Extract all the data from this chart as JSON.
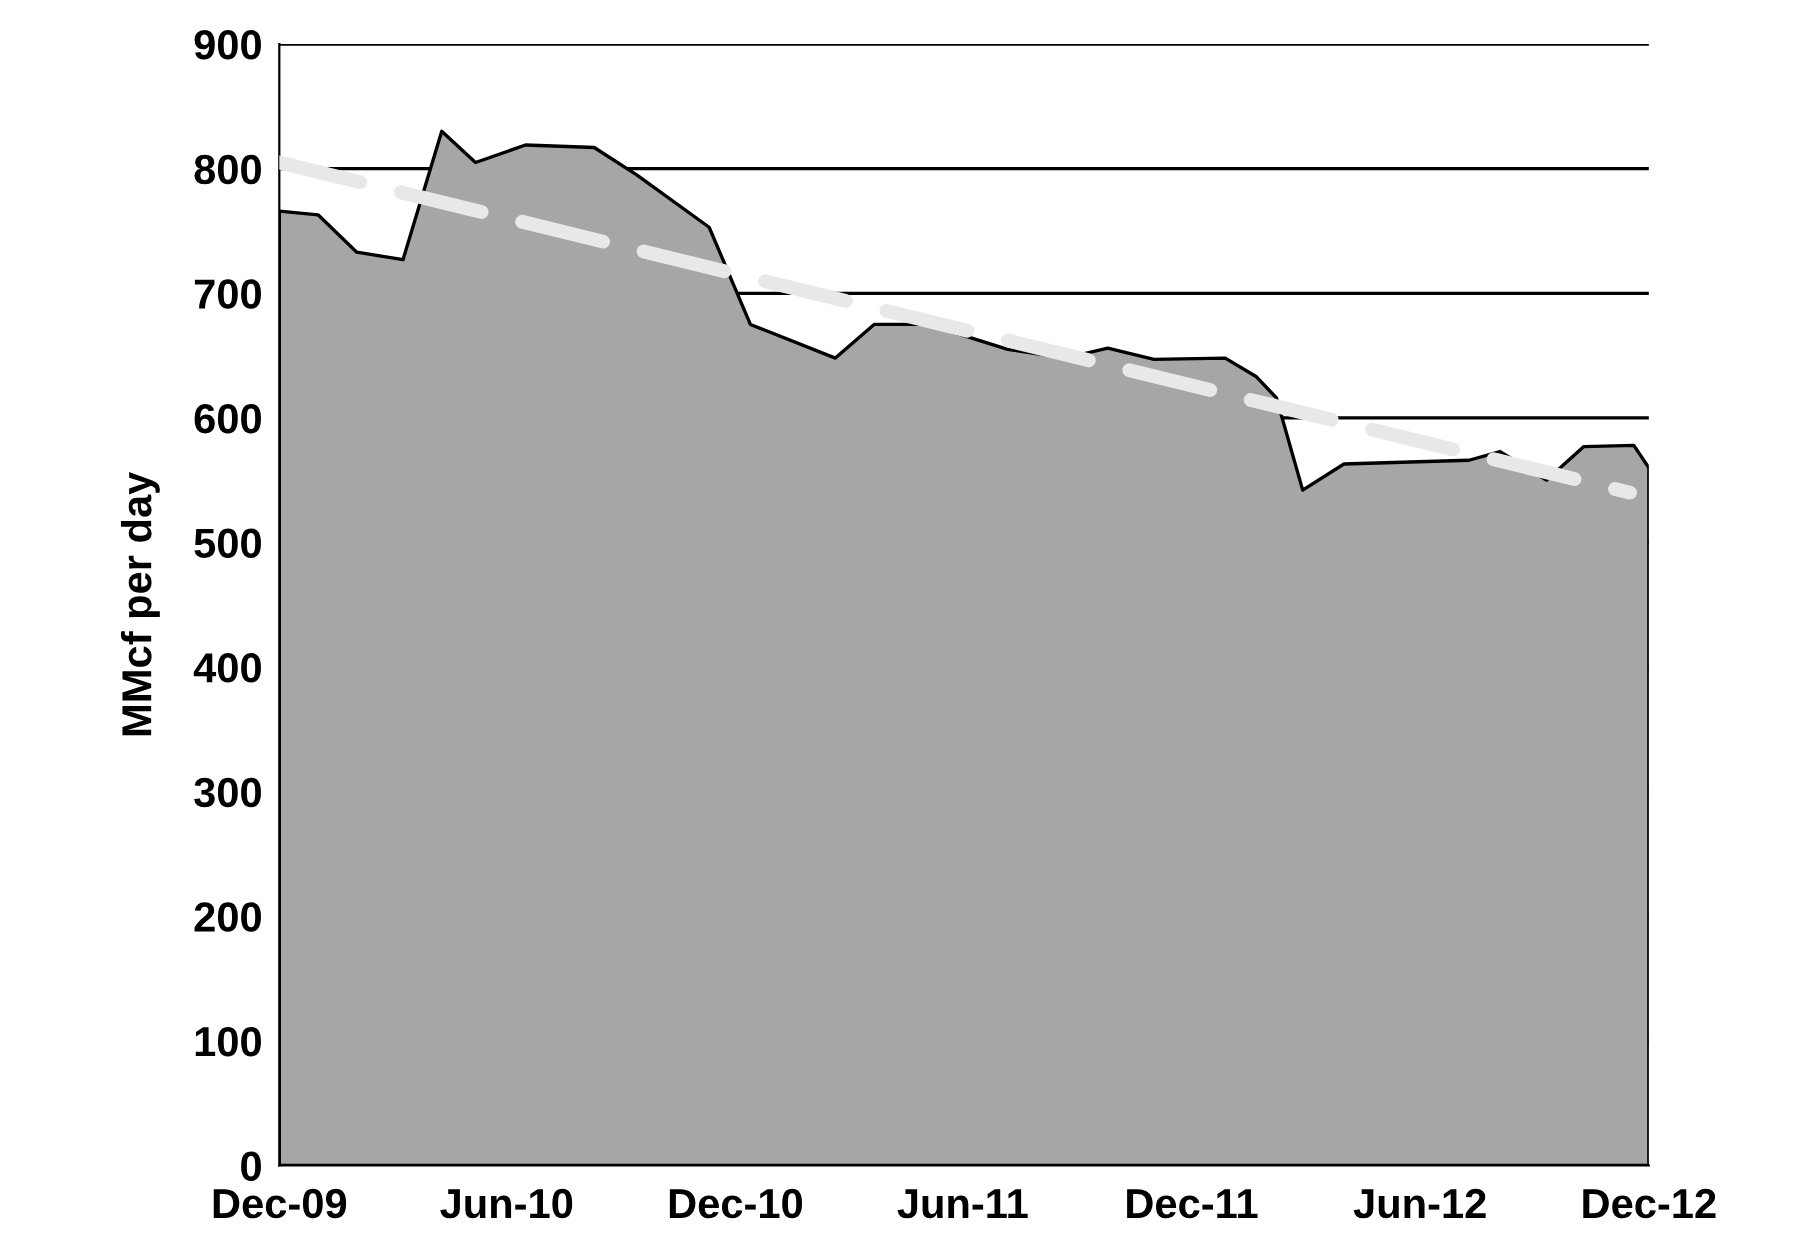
{
  "chart_data": {
    "type": "area",
    "ylabel": "MMcf per day",
    "grid": "y",
    "ylim": [
      0,
      900
    ],
    "yticks": [
      0,
      100,
      200,
      300,
      400,
      500,
      600,
      700,
      800,
      900
    ],
    "xlim": [
      "2009-12-01",
      "2012-12-01"
    ],
    "xticks": [
      {
        "value": "2009-12-01",
        "label": "Dec-09"
      },
      {
        "value": "2010-06-01",
        "label": "Jun-10"
      },
      {
        "value": "2010-12-01",
        "label": "Dec-10"
      },
      {
        "value": "2011-06-01",
        "label": "Jun-11"
      },
      {
        "value": "2011-12-01",
        "label": "Dec-11"
      },
      {
        "value": "2012-06-01",
        "label": "Jun-12"
      },
      {
        "value": "2012-12-01",
        "label": "Dec-12"
      }
    ],
    "series": [
      {
        "color": "#a6a6a6",
        "x": [
          "2009-12-01",
          "2010-01-01",
          "2010-02-01",
          "2010-03-10",
          "2010-04-10",
          "2010-05-07",
          "2010-06-16",
          "2010-08-10",
          "2010-09-13",
          "2010-11-10",
          "2010-12-13",
          "2011-02-19",
          "2011-03-22",
          "2011-05-04",
          "2011-07-07",
          "2011-08-22",
          "2011-09-25",
          "2011-11-01",
          "2011-12-28",
          "2012-01-22",
          "2012-02-07",
          "2012-02-28",
          "2012-04-01",
          "2012-07-10",
          "2012-08-04",
          "2012-09-10",
          "2012-10-10",
          "2012-11-19",
          "2012-12-01"
        ],
        "values": [
          766,
          763,
          733,
          727,
          830,
          805,
          819,
          817,
          795,
          753,
          675,
          648,
          675,
          675,
          655,
          648,
          656,
          647,
          648,
          633,
          616,
          542,
          563,
          566,
          573,
          550,
          577,
          578,
          560
        ]
      },
      {
        "type": "line",
        "color": "#e8e8e8",
        "line_style": "dashed",
        "x": [
          "2009-12-01",
          "2012-11-16"
        ],
        "values": [
          805,
          540
        ]
      }
    ]
  }
}
